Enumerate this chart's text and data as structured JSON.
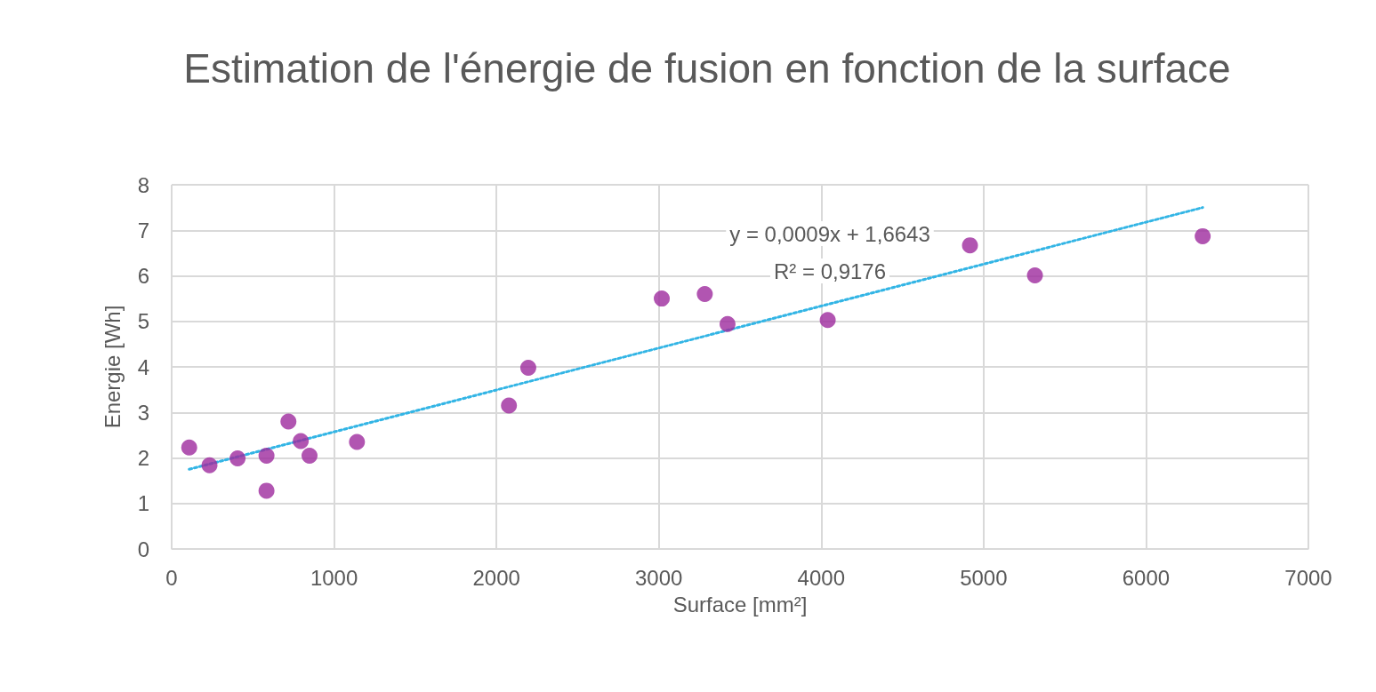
{
  "chart_data": {
    "type": "scatter",
    "title": "Estimation de l'énergie de fusion en fonction de la surface",
    "xlabel": "Surface [mm²]",
    "ylabel": "Energie [Wh]",
    "xlim": [
      0,
      7000
    ],
    "xticks": [
      0,
      1000,
      2000,
      3000,
      4000,
      5000,
      6000,
      7000
    ],
    "ylim": [
      0,
      8
    ],
    "yticks": [
      0,
      1,
      2,
      3,
      4,
      5,
      6,
      7,
      8
    ],
    "grid": true,
    "marker": "circle",
    "annotations": [
      "y = 0,0009x + 1,6643",
      "R² = 0,9176"
    ],
    "series": [
      {
        "color": "#9e2a9e",
        "x": [
          108,
          233,
          406,
          584,
          584,
          719,
          795,
          849,
          1141,
          2077,
          2196,
          3018,
          3283,
          3423,
          4040,
          4916,
          5316,
          6349
        ],
        "values": [
          2.23,
          1.84,
          1.99,
          2.05,
          1.28,
          2.8,
          2.37,
          2.05,
          2.35,
          3.15,
          3.98,
          5.5,
          5.6,
          4.94,
          5.03,
          6.67,
          6.01,
          6.87
        ]
      },
      {
        "type": "line",
        "color": "#33b5e5",
        "line_style": "dotted",
        "marker": "none",
        "x": [
          108,
          6349
        ],
        "values": [
          1.75,
          7.5
        ]
      }
    ]
  }
}
